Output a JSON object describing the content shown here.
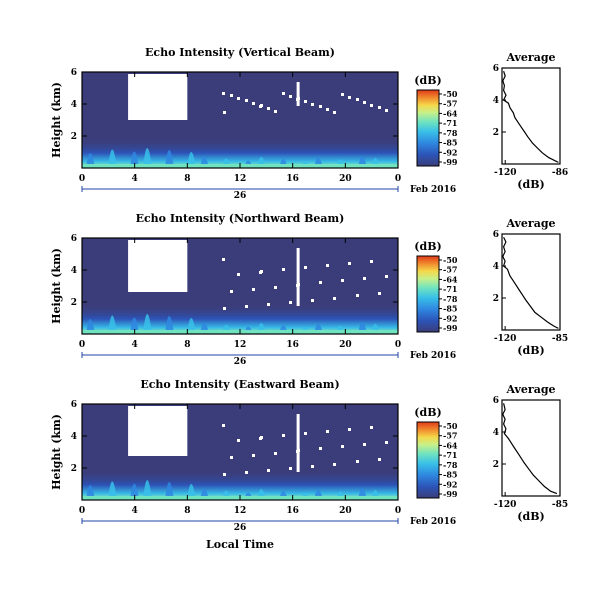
{
  "figure": {
    "xlabel": "Local Time",
    "date_label": "Feb 2016",
    "day_label": "26",
    "colorbar_unit": "(dB)",
    "colorbar_ticks": [
      "-50",
      "-57",
      "-64",
      "-71",
      "-78",
      "-85",
      "-92",
      "-99"
    ],
    "colorbar_colors": [
      "#3b3d7a",
      "#2c54b8",
      "#2f87e0",
      "#38bfe8",
      "#6fe3c0",
      "#c7f08a",
      "#f5d84a",
      "#f08a2c",
      "#e03a1a"
    ],
    "background_color": "#3b3d7a"
  },
  "chart_data": [
    {
      "type": "heatmap",
      "title": "Echo Intensity (Vertical Beam)",
      "ylabel": "Height (km)",
      "x_ticks": [
        "0",
        "4",
        "8",
        "12",
        "16",
        "20",
        "0"
      ],
      "y_ticks": [
        "6",
        "4",
        "2"
      ],
      "xlim": [
        0,
        24
      ],
      "ylim": [
        0,
        6
      ],
      "profile": {
        "title": "Average",
        "xlabel": "(dB)",
        "x_ticks": [
          "-120",
          "-86"
        ],
        "y_ticks": [
          "6",
          "4",
          "2"
        ],
        "xlim": [
          -122,
          -86
        ],
        "ylim": [
          0,
          6
        ],
        "points": [
          [
            -121,
            5.8
          ],
          [
            -120,
            5.5
          ],
          [
            -121.5,
            5.2
          ],
          [
            -120.5,
            4.9
          ],
          [
            -121,
            4.6
          ],
          [
            -119.5,
            4.3
          ],
          [
            -121,
            4.0
          ],
          [
            -118,
            3.8
          ],
          [
            -117,
            3.5
          ],
          [
            -115,
            3.2
          ],
          [
            -114,
            2.9
          ],
          [
            -112,
            2.6
          ],
          [
            -110,
            2.3
          ],
          [
            -108,
            2.0
          ],
          [
            -106,
            1.7
          ],
          [
            -103,
            1.3
          ],
          [
            -100,
            1.0
          ],
          [
            -97,
            0.7
          ],
          [
            -93,
            0.4
          ],
          [
            -89,
            0.2
          ],
          [
            -87,
            0.1
          ]
        ]
      }
    },
    {
      "type": "heatmap",
      "title": "Echo Intensity (Northward Beam)",
      "ylabel": "Height (km)",
      "x_ticks": [
        "0",
        "4",
        "8",
        "12",
        "16",
        "20",
        "0"
      ],
      "y_ticks": [
        "6",
        "4",
        "2"
      ],
      "xlim": [
        0,
        24
      ],
      "ylim": [
        0,
        6
      ],
      "profile": {
        "title": "Average",
        "xlabel": "(dB)",
        "x_ticks": [
          "-120",
          "-85"
        ],
        "y_ticks": [
          "6",
          "4",
          "2"
        ],
        "xlim": [
          -122,
          -85
        ],
        "ylim": [
          0,
          6
        ],
        "points": [
          [
            -121,
            5.8
          ],
          [
            -119.5,
            5.5
          ],
          [
            -121,
            5.2
          ],
          [
            -120,
            4.9
          ],
          [
            -121.5,
            4.6
          ],
          [
            -120,
            4.3
          ],
          [
            -121,
            4.0
          ],
          [
            -118.5,
            3.8
          ],
          [
            -117,
            3.4
          ],
          [
            -115,
            3.1
          ],
          [
            -113,
            2.8
          ],
          [
            -111,
            2.5
          ],
          [
            -109,
            2.2
          ],
          [
            -107,
            1.9
          ],
          [
            -104,
            1.5
          ],
          [
            -101,
            1.1
          ],
          [
            -97,
            0.8
          ],
          [
            -93,
            0.5
          ],
          [
            -89,
            0.25
          ],
          [
            -86,
            0.1
          ]
        ]
      }
    },
    {
      "type": "heatmap",
      "title": "Echo Intensity (Eastward Beam)",
      "ylabel": "Height (km)",
      "x_ticks": [
        "0",
        "4",
        "8",
        "12",
        "16",
        "20",
        "0"
      ],
      "y_ticks": [
        "6",
        "4",
        "2"
      ],
      "xlim": [
        0,
        24
      ],
      "ylim": [
        0,
        6
      ],
      "profile": {
        "title": "Average",
        "xlabel": "(dB)",
        "x_ticks": [
          "-120",
          "-85"
        ],
        "y_ticks": [
          "6",
          "4",
          "2"
        ],
        "xlim": [
          -122,
          -85
        ],
        "ylim": [
          0,
          6
        ],
        "points": [
          [
            -121,
            5.8
          ],
          [
            -120,
            5.4
          ],
          [
            -121.5,
            5.1
          ],
          [
            -120,
            4.8
          ],
          [
            -121,
            4.5
          ],
          [
            -119.5,
            4.2
          ],
          [
            -120.5,
            3.9
          ],
          [
            -118,
            3.6
          ],
          [
            -116,
            3.3
          ],
          [
            -114,
            3.0
          ],
          [
            -112,
            2.7
          ],
          [
            -110,
            2.4
          ],
          [
            -108,
            2.1
          ],
          [
            -105,
            1.7
          ],
          [
            -102,
            1.3
          ],
          [
            -99,
            1.0
          ],
          [
            -95,
            0.6
          ],
          [
            -91,
            0.3
          ],
          [
            -87,
            0.15
          ]
        ]
      }
    }
  ]
}
